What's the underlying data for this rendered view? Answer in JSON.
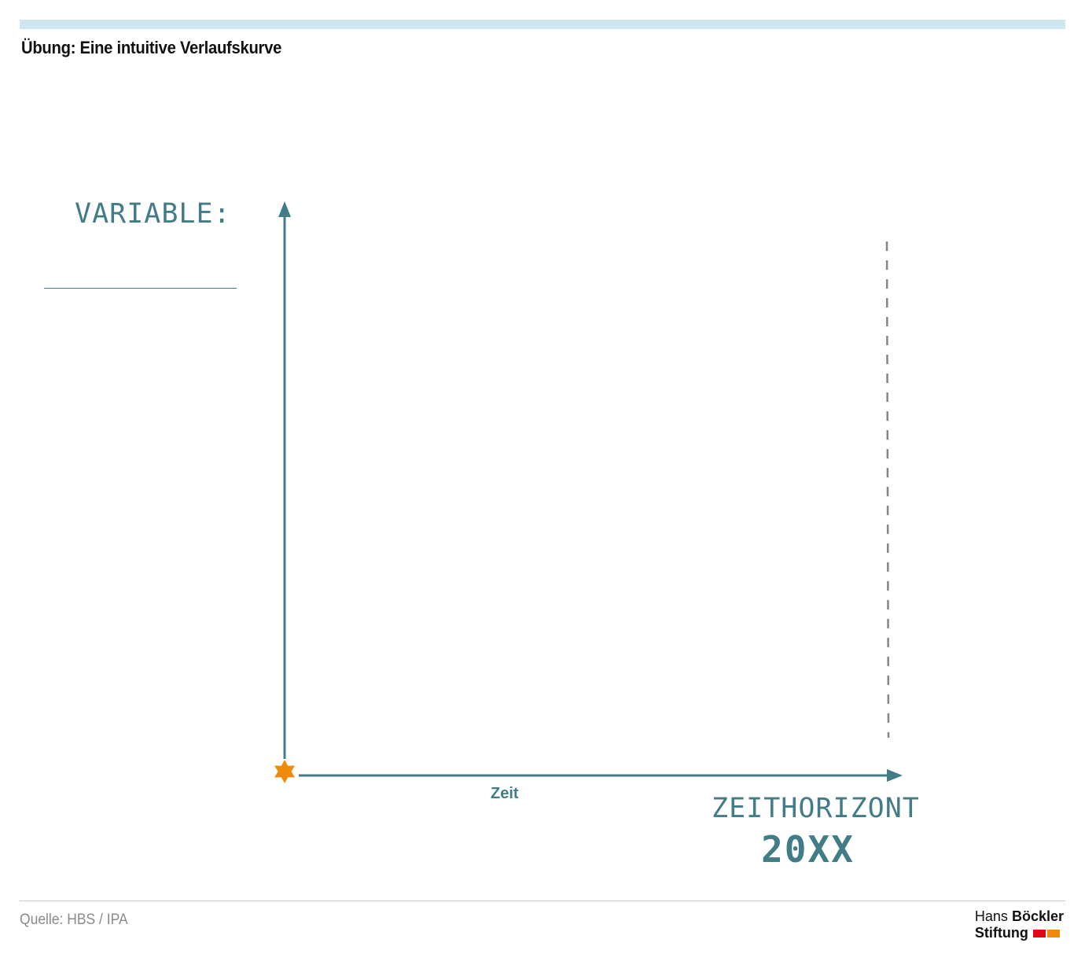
{
  "header": {
    "title": "Übung: Eine intuitive Verlaufskurve"
  },
  "diagram": {
    "variable_label": "VARIABLE:",
    "x_axis_caption": "Zeit",
    "horizon_title": "ZEITHORIZONT",
    "horizon_year": "20XX",
    "colors": {
      "axis": "#427c86",
      "start_marker": "#f08a0a",
      "horizon_line": "#8a857c"
    },
    "start_marker_icon": "star-icon",
    "horizon_line_style": "dashed"
  },
  "footer": {
    "source": "Quelle: HBS / IPA",
    "logo": {
      "line1_light": "Hans",
      "line1_bold": "Böckler",
      "line2": "Stiftung",
      "mark_colors": [
        "#e30613",
        "#f08a0a"
      ]
    }
  }
}
